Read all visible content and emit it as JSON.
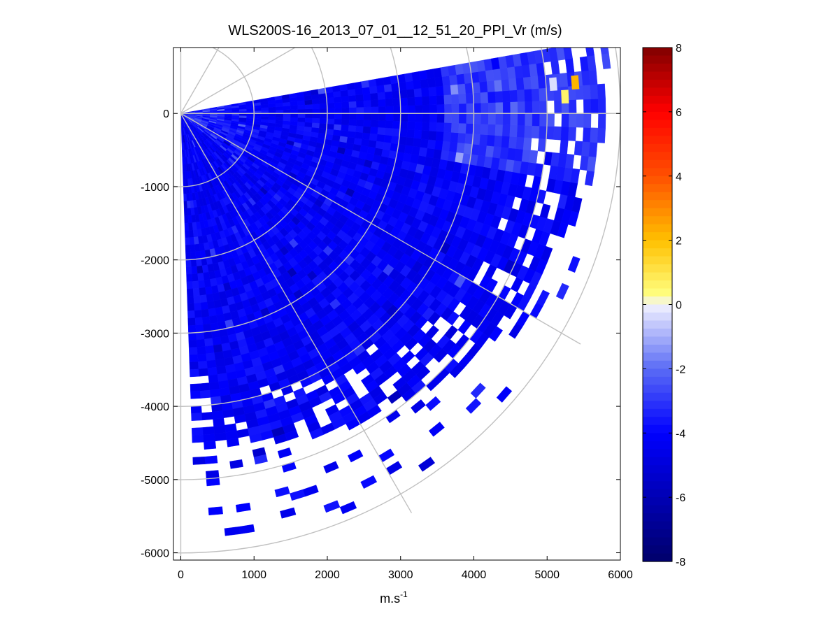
{
  "chart_data": {
    "type": "heatmap",
    "subtype": "ppi-polar-sector",
    "title": "WLS200S-16_2013_07_01__12_51_20_PPI_Vr (m/s)",
    "xlabel_base": "m.s",
    "xlabel_exp": "-1",
    "xlim": [
      -100,
      6000
    ],
    "ylim": [
      -6100,
      900
    ],
    "xticks": [
      0,
      1000,
      2000,
      3000,
      4000,
      5000,
      6000
    ],
    "yticks": [
      0,
      -1000,
      -2000,
      -3000,
      -4000,
      -5000,
      -6000
    ],
    "xtick_labels": [
      "0",
      "1000",
      "2000",
      "3000",
      "4000",
      "5000",
      "6000"
    ],
    "ytick_labels": [
      "0",
      "-1000",
      "-2000",
      "-3000",
      "-4000",
      "-5000",
      "-6000"
    ],
    "polar_grid": {
      "range_rings": [
        1000,
        2000,
        3000,
        4000,
        5000,
        6000
      ],
      "spokes_deg": [
        0,
        -30,
        -60,
        -90,
        30,
        60,
        90
      ],
      "color": "#c0c0c0"
    },
    "scan": {
      "azimuth_start_deg": -88,
      "azimuth_end_deg": 10,
      "azimuth_step_deg": 2,
      "range_gate_m": 100,
      "max_range_m": 5900,
      "typical_velocity_ms": -4.2
    },
    "colorbar": {
      "min": -8,
      "max": 8,
      "ticks": [
        8,
        6,
        4,
        2,
        0,
        -2,
        -4,
        -6,
        -8
      ],
      "tick_labels": [
        "8",
        "6",
        "4",
        "2",
        "0",
        "-2",
        "-4",
        "-6",
        "-8"
      ],
      "levels": 64,
      "stops": [
        {
          "v": -8,
          "c": "#00006a"
        },
        {
          "v": -4,
          "c": "#0000ff"
        },
        {
          "v": -2,
          "c": "#5b6cf5"
        },
        {
          "v": 0,
          "c": "#f2f2ff"
        },
        {
          "v": 0.3,
          "c": "#ffff80"
        },
        {
          "v": 2,
          "c": "#ffc000"
        },
        {
          "v": 4,
          "c": "#ff5000"
        },
        {
          "v": 6,
          "c": "#ff0000"
        },
        {
          "v": 8,
          "c": "#800000"
        }
      ]
    }
  }
}
